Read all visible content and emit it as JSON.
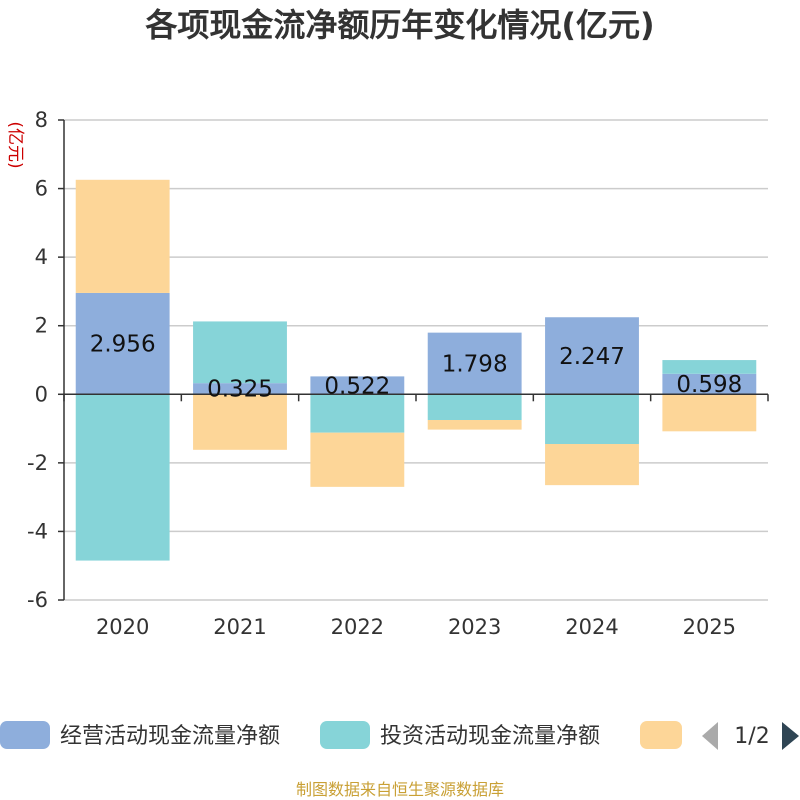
{
  "chart_data": {
    "type": "bar",
    "stacked": true,
    "title": "各项现金流净额历年变化情况(亿元)",
    "ylabel": "(亿元)",
    "categories": [
      "2020",
      "2021",
      "2022",
      "2023",
      "2024",
      "2025"
    ],
    "ylim": [
      -6,
      8
    ],
    "yticks": [
      -6,
      -4,
      -2,
      0,
      2,
      4,
      6,
      8
    ],
    "series": [
      {
        "name": "经营活动现金流量净额",
        "color": "#8eaedc",
        "values": [
          2.956,
          0.325,
          0.522,
          1.798,
          2.247,
          0.598
        ],
        "labels": [
          "2.956",
          "0.325",
          "0.522",
          "1.798",
          "2.247",
          "0.598"
        ]
      },
      {
        "name": "投资活动现金流量净额",
        "color": "#86d4d8",
        "values": [
          -4.85,
          1.8,
          -1.12,
          -0.75,
          -1.45,
          0.4
        ]
      },
      {
        "name": "",
        "color": "#fdd698",
        "values": [
          3.3,
          -1.62,
          -1.58,
          -0.28,
          -1.2,
          -1.08
        ]
      }
    ],
    "legend": {
      "page": "1/2"
    },
    "source": "制图数据来自恒生聚源数据库"
  }
}
